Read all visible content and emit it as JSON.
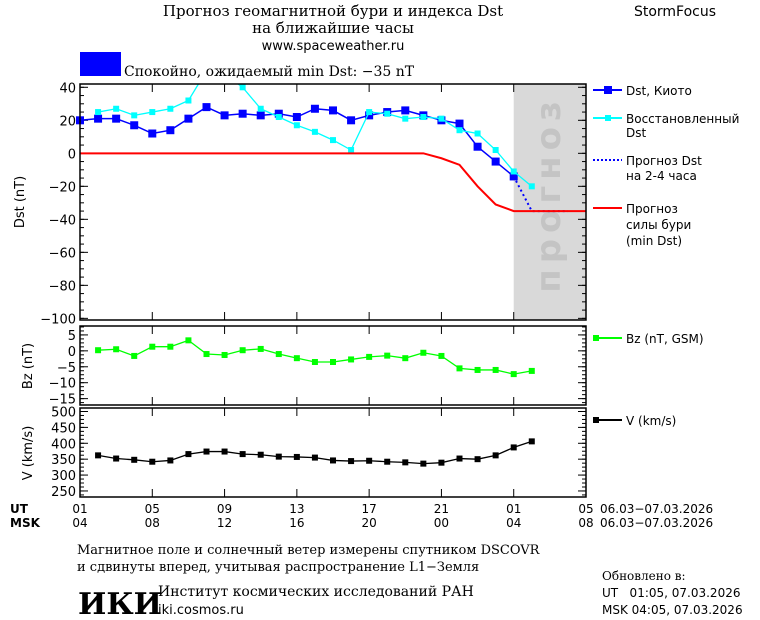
{
  "header": {
    "title_line1": "Прогноз геомагнитной бури и индекса Dst",
    "title_line2": "на ближайшие часы",
    "site": "www.spaceweather.ru",
    "brand": "StormFocus",
    "status_text": "Спокойно, ожидаемый min Dst: −35 nT",
    "status_color": "#0000ff"
  },
  "footer": {
    "ut_label": "UT",
    "msk_label": "MSK",
    "ut_date_range": "06.03−07.03.2026",
    "msk_date_range": "06.03−07.03.2026",
    "note_line1": "Магнитное поле и солнечный ветер измерены спутником DSCOVR",
    "note_line2": "и сдвинуты вперед, учитывая распространение L1−Земля",
    "institute": "Институт космических исследований РАН",
    "institute_site": "iki.cosmos.ru",
    "logo_text": "ИКИ",
    "updated_label": "Обновлено в:",
    "updated_ut": "UT   01:05, 07.03.2026",
    "updated_msk": "MSK 04:05, 07.03.2026"
  },
  "chart_data": [
    {
      "type": "line",
      "ylabel": "Dst (nT)",
      "ylim": [
        -101,
        42
      ],
      "yticks": [
        40,
        20,
        0,
        -20,
        -40,
        -60,
        -80,
        -100
      ],
      "xlim": [
        1,
        29
      ],
      "forecast_region": [
        25,
        29
      ],
      "forecast_label": "прогноз",
      "series": [
        {
          "name": "Dst, Киото",
          "color": "#0000ff",
          "marker": "square-large",
          "x": [
            1,
            2,
            3,
            4,
            5,
            6,
            7,
            8,
            9,
            10,
            11,
            12,
            13,
            14,
            15,
            16,
            17,
            18,
            19,
            20,
            21,
            22,
            23,
            24,
            25
          ],
          "values": [
            20,
            21,
            21,
            17,
            12,
            14,
            21,
            28,
            23,
            24,
            23,
            24,
            22,
            27,
            26,
            20,
            23,
            25,
            26,
            23,
            20,
            18,
            4,
            -5,
            -14
          ]
        },
        {
          "name": "Восстановленный Dst",
          "color": "#00ffff",
          "marker": "square-small",
          "x": [
            2,
            3,
            4,
            5,
            6,
            7,
            8,
            9,
            10,
            11,
            12,
            13,
            14,
            15,
            16,
            17,
            18,
            19,
            20,
            21,
            22,
            23,
            24,
            25,
            26
          ],
          "values": [
            25,
            27,
            23,
            25,
            27,
            32,
            50,
            48,
            40,
            27,
            22,
            17,
            13,
            8,
            2,
            25,
            24,
            21,
            22,
            21,
            14,
            12,
            2,
            -11,
            -20
          ]
        },
        {
          "name": "Прогноз Dst на 2-4 часа",
          "color": "#0000ff",
          "marker": "dotted",
          "x": [
            25,
            26,
            28
          ],
          "values": [
            -14,
            -35,
            -35
          ]
        },
        {
          "name": "Прогноз силы бури (min Dst)",
          "color": "#ff0000",
          "marker": "none",
          "x": [
            1,
            20,
            21,
            22,
            23,
            24,
            25,
            29
          ],
          "values": [
            0,
            0,
            -3,
            -7,
            -20,
            -31,
            -35,
            -35
          ]
        }
      ]
    },
    {
      "type": "line",
      "ylabel": "Bz (nT)",
      "ylim": [
        -17,
        7.8
      ],
      "yticks": [
        5,
        0,
        -5,
        -10,
        -15
      ],
      "xlim": [
        1,
        29
      ],
      "series": [
        {
          "name": "Bz (nT, GSM)",
          "color": "#00ff00",
          "marker": "square-small",
          "x": [
            2,
            3,
            4,
            5,
            6,
            7,
            8,
            9,
            10,
            11,
            12,
            13,
            14,
            15,
            16,
            17,
            18,
            19,
            20,
            21,
            22,
            23,
            24,
            25,
            26
          ],
          "values": [
            0.2,
            0.5,
            -1.6,
            1.3,
            1.3,
            3.3,
            -1.0,
            -1.3,
            0.2,
            0.6,
            -1.0,
            -2.3,
            -3.5,
            -3.5,
            -2.7,
            -1.9,
            -1.5,
            -2.3,
            -0.6,
            -1.6,
            -5.5,
            -6.0,
            -6.0,
            -7.3,
            -6.3
          ]
        }
      ]
    },
    {
      "type": "line",
      "ylabel": "V (km/s)",
      "ylim": [
        231,
        511
      ],
      "yticks": [
        500,
        450,
        400,
        350,
        300,
        250
      ],
      "xlim": [
        1,
        29
      ],
      "series": [
        {
          "name": "V (km/s)",
          "color": "#000000",
          "marker": "square-small",
          "x": [
            2,
            3,
            4,
            5,
            6,
            7,
            8,
            9,
            10,
            11,
            12,
            13,
            14,
            15,
            16,
            17,
            18,
            19,
            20,
            21,
            22,
            23,
            24,
            25,
            26
          ],
          "values": [
            362,
            352,
            348,
            342,
            346,
            366,
            374,
            374,
            366,
            364,
            358,
            357,
            355,
            346,
            344,
            345,
            342,
            340,
            336,
            339,
            352,
            350,
            362,
            387,
            406
          ]
        }
      ]
    }
  ],
  "x_axis": {
    "ticks_hours": [
      1,
      5,
      9,
      13,
      17,
      21,
      25,
      29
    ],
    "ut_labels": [
      "01",
      "05",
      "09",
      "13",
      "17",
      "21",
      "01",
      "05"
    ],
    "msk_labels": [
      "04",
      "08",
      "12",
      "16",
      "20",
      "00",
      "04",
      "08"
    ]
  },
  "legend": {
    "dst_kyoto": "Dst, Киото",
    "restored_1": "Восстановленный",
    "restored_2": "Dst",
    "forecast_1": "Прогноз Dst",
    "forecast_2": "на 2-4 часа",
    "storm_1": "Прогноз",
    "storm_2": "силы бури",
    "storm_3": "(min Dst)",
    "bz": "Bz (nT, GSM)",
    "v": "V (km/s)"
  }
}
